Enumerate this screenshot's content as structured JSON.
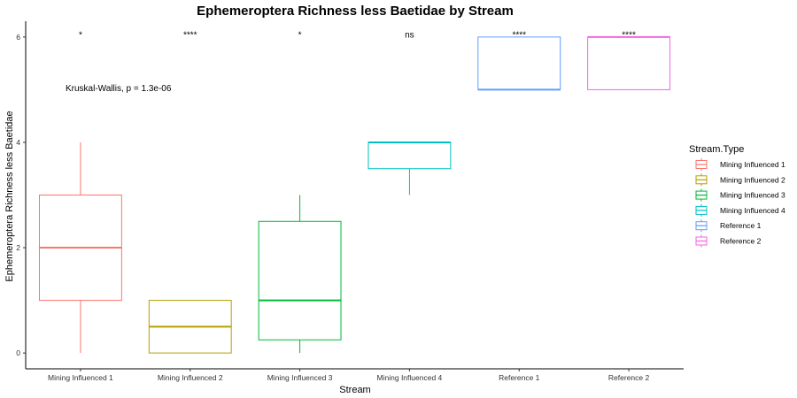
{
  "chart_data": {
    "type": "boxplot",
    "title": "Ephemeroptera Richness less Baetidae by Stream",
    "xlabel": "Stream",
    "ylabel": "Ephemeroptera Richness less Baetidae",
    "ylim": [
      -0.3,
      6.3
    ],
    "yticks": [
      0,
      2,
      4,
      6
    ],
    "grid": false,
    "legend": {
      "title": "Stream.Type",
      "position": "right",
      "entries": [
        "Mining Influenced 1",
        "Mining Influenced 2",
        "Mining Influenced 3",
        "Mining Influenced 4",
        "Reference 1",
        "Reference 2"
      ]
    },
    "annotation": "Kruskal-Wallis, p = 1.3e-06",
    "categories": [
      "Mining Influenced 1",
      "Mining Influenced 2",
      "Mining Influenced 3",
      "Mining Influenced 4",
      "Reference 1",
      "Reference 2"
    ],
    "boxes": [
      {
        "name": "Mining Influenced 1",
        "color": "#F8766D",
        "min": 0,
        "q1": 1,
        "median": 2,
        "q3": 3,
        "max": 4,
        "signif": "*"
      },
      {
        "name": "Mining Influenced 2",
        "color": "#B79F00",
        "min": 0,
        "q1": 0,
        "median": 0.5,
        "q3": 1,
        "max": 1,
        "signif": "****"
      },
      {
        "name": "Mining Influenced 3",
        "color": "#00BA38",
        "min": 0,
        "q1": 0.25,
        "median": 1,
        "q3": 2.5,
        "max": 3,
        "signif": "*"
      },
      {
        "name": "Mining Influenced 4",
        "color": "#00BFC4",
        "min": 3,
        "q1": 3.5,
        "median": 4,
        "q3": 4,
        "max": 4,
        "signif": "ns"
      },
      {
        "name": "Reference 1",
        "color": "#619CFF",
        "min": 5,
        "q1": 5,
        "median": 5,
        "q3": 6,
        "max": 6,
        "signif": "****"
      },
      {
        "name": "Reference 2",
        "color": "#F564E3",
        "min": 5,
        "q1": 5,
        "median": 6,
        "q3": 6,
        "max": 6,
        "signif": "****"
      }
    ]
  }
}
